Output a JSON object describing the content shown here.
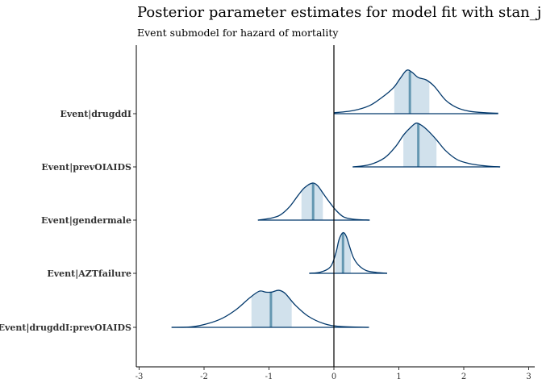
{
  "chart_data": {
    "type": "area",
    "title": "Posterior parameter estimates for model fit with stan_jm",
    "subtitle": "Event submodel for hazard of mortality",
    "xlabel": "",
    "ylabel": "",
    "xlim": [
      -3.05,
      3.05
    ],
    "x_ticks": [
      -3,
      -2,
      -1,
      0,
      1,
      2,
      3
    ],
    "reference_line_x": 0,
    "grid": false,
    "legend": "none",
    "colors": {
      "outline": "#03396c",
      "interval_fill": "#d1e1ec",
      "median_line": "#6497b1",
      "axis": "#000000"
    },
    "parameters": [
      {
        "label": "Event|drugddI",
        "median": 1.17,
        "interval": [
          0.93,
          1.47
        ],
        "range": [
          0.0,
          2.53
        ],
        "density": [
          [
            0.0,
            0.02
          ],
          [
            0.3,
            0.07
          ],
          [
            0.55,
            0.18
          ],
          [
            0.75,
            0.37
          ],
          [
            0.92,
            0.58
          ],
          [
            1.02,
            0.78
          ],
          [
            1.12,
            0.96
          ],
          [
            1.2,
            0.92
          ],
          [
            1.3,
            0.8
          ],
          [
            1.42,
            0.75
          ],
          [
            1.55,
            0.6
          ],
          [
            1.72,
            0.3
          ],
          [
            1.9,
            0.13
          ],
          [
            2.1,
            0.05
          ],
          [
            2.35,
            0.02
          ],
          [
            2.53,
            0.01
          ]
        ]
      },
      {
        "label": "Event|prevOIAIDS",
        "median": 1.3,
        "interval": [
          1.07,
          1.58
        ],
        "range": [
          0.29,
          2.56
        ],
        "density": [
          [
            0.29,
            0.0
          ],
          [
            0.55,
            0.05
          ],
          [
            0.78,
            0.2
          ],
          [
            0.95,
            0.45
          ],
          [
            1.08,
            0.72
          ],
          [
            1.2,
            0.9
          ],
          [
            1.27,
            0.97
          ],
          [
            1.35,
            0.92
          ],
          [
            1.45,
            0.8
          ],
          [
            1.58,
            0.6
          ],
          [
            1.72,
            0.36
          ],
          [
            1.9,
            0.16
          ],
          [
            2.1,
            0.07
          ],
          [
            2.35,
            0.02
          ],
          [
            2.56,
            0.0
          ]
        ]
      },
      {
        "label": "Event|gendermale",
        "median": -0.32,
        "interval": [
          -0.5,
          -0.17
        ],
        "range": [
          -1.17,
          0.55
        ],
        "density": [
          [
            -1.17,
            0.0
          ],
          [
            -0.95,
            0.05
          ],
          [
            -0.82,
            0.12
          ],
          [
            -0.68,
            0.3
          ],
          [
            -0.55,
            0.55
          ],
          [
            -0.45,
            0.72
          ],
          [
            -0.33,
            0.82
          ],
          [
            -0.25,
            0.76
          ],
          [
            -0.17,
            0.6
          ],
          [
            -0.08,
            0.42
          ],
          [
            0.03,
            0.22
          ],
          [
            0.15,
            0.07
          ],
          [
            0.3,
            0.02
          ],
          [
            0.55,
            0.0
          ]
        ]
      },
      {
        "label": "Event|AZTfailure",
        "median": 0.14,
        "interval": [
          0.02,
          0.26
        ],
        "range": [
          -0.38,
          0.82
        ],
        "density": [
          [
            -0.38,
            0.0
          ],
          [
            -0.2,
            0.03
          ],
          [
            -0.05,
            0.15
          ],
          [
            0.03,
            0.45
          ],
          [
            0.08,
            0.75
          ],
          [
            0.14,
            0.9
          ],
          [
            0.19,
            0.82
          ],
          [
            0.24,
            0.6
          ],
          [
            0.3,
            0.35
          ],
          [
            0.38,
            0.18
          ],
          [
            0.5,
            0.06
          ],
          [
            0.65,
            0.02
          ],
          [
            0.82,
            0.0
          ]
        ]
      },
      {
        "label": "Event|drugddI:prevOIAIDS",
        "median": -0.97,
        "interval": [
          -1.27,
          -0.65
        ],
        "range": [
          -2.5,
          0.54
        ],
        "density": [
          [
            -2.5,
            0.0
          ],
          [
            -2.2,
            0.01
          ],
          [
            -1.95,
            0.08
          ],
          [
            -1.72,
            0.2
          ],
          [
            -1.5,
            0.4
          ],
          [
            -1.3,
            0.65
          ],
          [
            -1.15,
            0.8
          ],
          [
            -1.05,
            0.78
          ],
          [
            -0.96,
            0.78
          ],
          [
            -0.85,
            0.82
          ],
          [
            -0.75,
            0.75
          ],
          [
            -0.6,
            0.5
          ],
          [
            -0.4,
            0.25
          ],
          [
            -0.15,
            0.08
          ],
          [
            0.1,
            0.02
          ],
          [
            0.54,
            0.0
          ]
        ]
      }
    ]
  }
}
